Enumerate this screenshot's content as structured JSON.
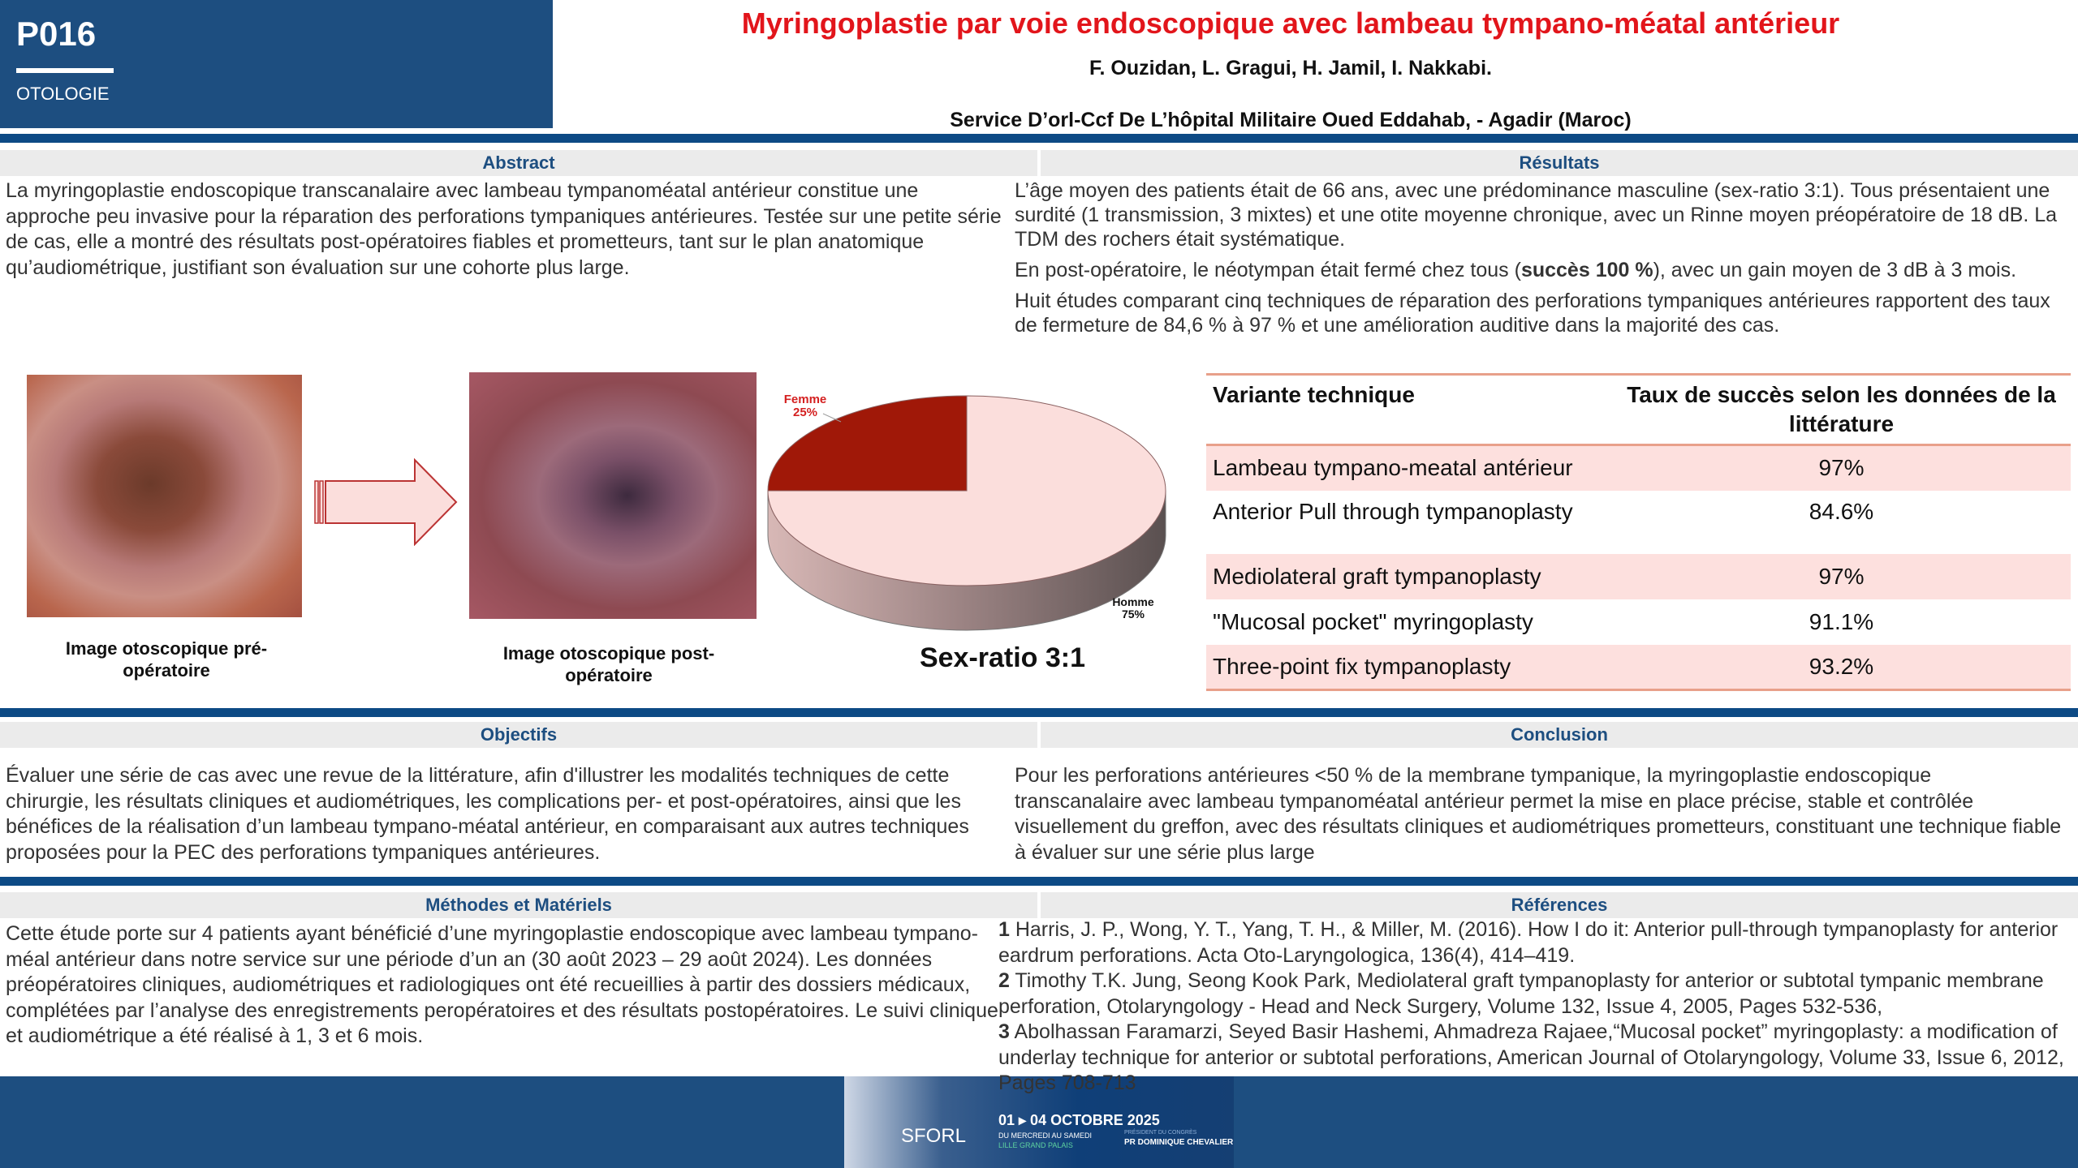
{
  "header": {
    "poster_id": "P016",
    "section": "OTOLOGIE",
    "title": "Myringoplastie par voie endoscopique avec lambeau tympano-méatal antérieur",
    "authors": "F. Ouzidan, L. Gragui, H. Jamil, I. Nakkabi.",
    "affiliation": "Service D’orl-Ccf De L’hôpital Militaire Oued Eddahab, - Agadir (Maroc)",
    "colors": {
      "brand_blue": "#1d4e80",
      "title_red": "#e2151b"
    }
  },
  "abstract": {
    "heading": "Abstract",
    "text": "La myringoplastie endoscopique transcanalaire avec lambeau tympanoméatal antérieur constitue une approche peu invasive pour la réparation des perforations tympaniques antérieures. Testée sur une petite série de cas, elle a montré des résultats post-opératoires fiables et prometteurs, tant sur le plan anatomique qu’audiométrique, justifiant son évaluation sur une cohorte plus large."
  },
  "figures": {
    "pre_caption": "Image otoscopique pré-opératoire",
    "post_caption": "Image otoscopique post-opératoire",
    "arrow_icon": "arrow-right-icon"
  },
  "chart_data": {
    "type": "pie",
    "title": "Sex-ratio 3:1",
    "slices": [
      {
        "label": "Femme",
        "value": 25,
        "display": "25%",
        "color": "#a01808"
      },
      {
        "label": "Homme",
        "value": 75,
        "display": "75%",
        "color": "#fbdedc"
      }
    ]
  },
  "results": {
    "heading": "Résultats",
    "p1": "L’âge moyen des patients était de 66 ans, avec une prédominance masculine (sex-ratio 3:1). Tous présentaient une surdité (1 transmission, 3 mixtes) et une otite moyenne chronique, avec un Rinne moyen préopératoire de 18 dB. La TDM des rochers était systématique.",
    "p2_a": "En post-opératoire, le néotympan était fermé chez tous (",
    "p2_bold": "succès 100 %",
    "p2_b": "), avec un gain moyen de 3 dB à 3 mois.",
    "p3": "Huit études comparant cinq techniques de réparation des perforations tympaniques antérieures rapportent des taux de fermeture de 84,6 % à 97 % et une amélioration auditive dans la majorité des cas."
  },
  "table": {
    "headers": [
      "Variante technique",
      "Taux de succès selon les données de la littérature"
    ],
    "rows": [
      [
        "Lambeau tympano-meatal antérieur",
        "97%"
      ],
      [
        "Anterior Pull through tympanoplasty",
        "84.6%"
      ],
      [
        "Mediolateral graft tympanoplasty",
        "97%"
      ],
      [
        "\"Mucosal pocket\" myringoplasty",
        "91.1%"
      ],
      [
        "Three-point fix tympanoplasty",
        "93.2%"
      ]
    ]
  },
  "objectifs": {
    "heading": "Objectifs",
    "text": "Évaluer une série de cas avec une revue de la littérature, afin d'illustrer les modalités techniques de cette chirurgie, les résultats cliniques et audiométriques, les complications per- et post-opératoires, ainsi que les bénéfices de la réalisation d’un lambeau tympano-méatal antérieur, en comparaisant aux autres techniques proposées pour la PEC des perforations tympaniques antérieures."
  },
  "conclusion": {
    "heading": "Conclusion",
    "text": "Pour les perforations antérieures <50 % de la membrane tympanique, la myringoplastie endoscopique transcanalaire avec lambeau tympanoméatal antérieur permet la mise en place précise, stable et contrôlée visuellement du greffon, avec des résultats cliniques et audiométriques prometteurs, constituant une technique fiable à évaluer sur une série plus large"
  },
  "methodes": {
    "heading": "Méthodes et Matériels",
    "text": "Cette étude porte sur 4 patients ayant bénéficié d’une myringoplastie endoscopique avec lambeau tympano-méal antérieur dans notre service sur une période d’un an (30 août 2023 – 29 août 2024). Les données préopératoires cliniques, audiométriques et radiologiques ont été recueillies à partir des dossiers médicaux, complétées par l’analyse des enregistrements peropératoires et des résultats postopératoires. Le suivi clinique et audiométrique a été réalisé à 1, 3 et 6 mois."
  },
  "references": {
    "heading": "Références",
    "items": [
      {
        "num": "1",
        "text": " Harris, J. P., Wong, Y. T., Yang, T. H., & Miller, M. (2016). How I do it: Anterior pull-through tympanoplasty for anterior eardrum perforations. Acta Oto-Laryngologica, 136(4), 414–419."
      },
      {
        "num": "2",
        "text": " Timothy T.K. Jung, Seong Kook Park, Mediolateral graft tympanoplasty for anterior or subtotal tympanic membrane perforation, Otolaryngology - Head and Neck Surgery, Volume 132, Issue 4, 2005, Pages 532-536,"
      },
      {
        "num": "3",
        "text": " Abolhassan Faramarzi, Seyed Basir Hashemi, Ahmadreza Rajaee,“Mucosal pocket” myringoplasty: a modification of underlay technique for anterior or subtotal perforations, American Journal of Otolaryngology, Volume 33, Issue 6, 2012, Pages 708-713"
      }
    ]
  },
  "footer": {
    "banner": {
      "brand": "SFORL",
      "dates": "01 ▸ 04 OCTOBRE 2025",
      "days": "DU MERCREDI AU SAMEDI",
      "venue": "LILLE GRAND PALAIS",
      "president_label": "PRÉSIDENT DU CONGRÈS",
      "president": "PR DOMINIQUE CHEVALIER"
    }
  }
}
